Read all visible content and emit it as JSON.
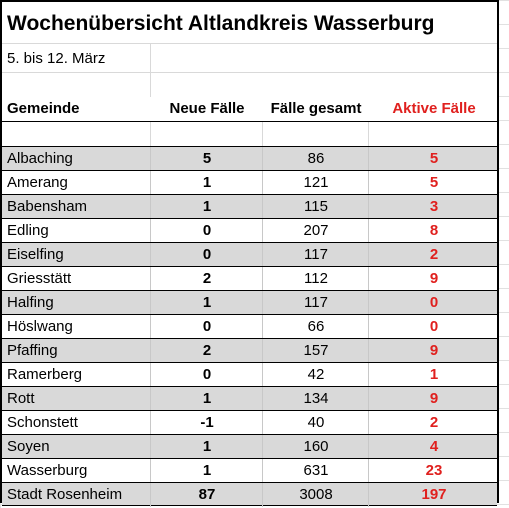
{
  "title": "Wochenübersicht Altlandkreis Wasserburg",
  "subtitle": "5. bis 12. März",
  "colors": {
    "active_red": "#e0201e",
    "shade": "#d9d9d9"
  },
  "headers": {
    "name": "Gemeinde",
    "new": "Neue Fälle",
    "total": "Fälle gesamt",
    "active": "Aktive Fälle"
  },
  "rows": [
    {
      "name": "Albaching",
      "new": "5",
      "total": "86",
      "active": "5"
    },
    {
      "name": "Amerang",
      "new": "1",
      "total": "121",
      "active": "5"
    },
    {
      "name": "Babensham",
      "new": "1",
      "total": "115",
      "active": "3"
    },
    {
      "name": "Edling",
      "new": "0",
      "total": "207",
      "active": "8"
    },
    {
      "name": "Eiselfing",
      "new": "0",
      "total": "117",
      "active": "2"
    },
    {
      "name": "Griesstätt",
      "new": "2",
      "total": "112",
      "active": "9"
    },
    {
      "name": "Halfing",
      "new": "1",
      "total": "117",
      "active": "0"
    },
    {
      "name": "Höslwang",
      "new": "0",
      "total": "66",
      "active": "0"
    },
    {
      "name": "Pfaffing",
      "new": "2",
      "total": "157",
      "active": "9"
    },
    {
      "name": "Ramerberg",
      "new": "0",
      "total": "42",
      "active": "1"
    },
    {
      "name": "Rott",
      "new": "1",
      "total": "134",
      "active": "9"
    },
    {
      "name": "Schonstett",
      "new": "-1",
      "total": "40",
      "active": "2"
    },
    {
      "name": "Soyen",
      "new": "1",
      "total": "160",
      "active": "4"
    },
    {
      "name": "Wasserburg",
      "new": "1",
      "total": "631",
      "active": "23"
    },
    {
      "name": "Stadt Rosenheim",
      "new": "87",
      "total": "3008",
      "active": "197"
    }
  ]
}
